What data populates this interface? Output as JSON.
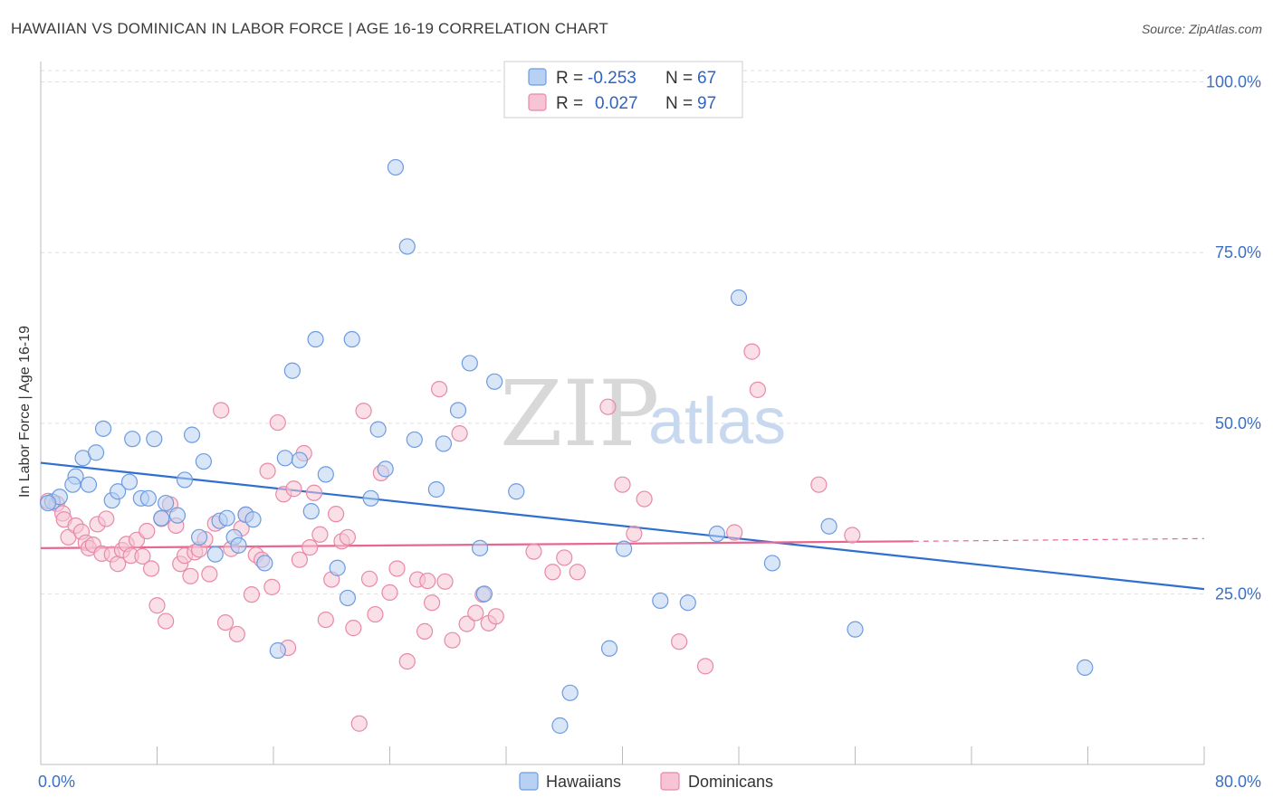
{
  "title": "HAWAIIAN VS DOMINICAN IN LABOR FORCE | AGE 16-19 CORRELATION CHART",
  "source": "Source: ZipAtlas.com",
  "watermark": {
    "zip": "ZIP",
    "atlas": "atlas"
  },
  "colors": {
    "hawaiian_fill": "#b8d1f3",
    "hawaiian_stroke": "#6d9be0",
    "hawaiian_line": "#2f6fd0",
    "dominican_fill": "#f6c4d4",
    "dominican_stroke": "#e889a8",
    "dominican_line": "#e6678f",
    "grid": "#dddddd",
    "tick_label": "#3b6fc4"
  },
  "stats": [
    {
      "r_label": "R =",
      "r_value": "-0.253",
      "n_label": "N =",
      "n_value": "67"
    },
    {
      "r_label": "R =",
      "r_value": "0.027",
      "n_label": "N =",
      "n_value": "97"
    }
  ],
  "chart_data": {
    "type": "scatter",
    "title": "HAWAIIAN VS DOMINICAN IN LABOR FORCE | AGE 16-19 CORRELATION CHART",
    "xlabel": "",
    "ylabel": "In Labor Force | Age 16-19",
    "xlim": [
      0,
      80
    ],
    "ylim": [
      0,
      103
    ],
    "x_tick_labels": [
      "0.0%",
      "80.0%"
    ],
    "y_ticks": [
      25,
      50,
      75,
      100
    ],
    "y_tick_labels": [
      "25.0%",
      "50.0%",
      "75.0%",
      "100.0%"
    ],
    "grid": true,
    "legend_position": "bottom-center",
    "series": [
      {
        "name": "Hawaiians",
        "trend": {
          "x": [
            0,
            80
          ],
          "y": [
            44.2,
            25.7
          ]
        },
        "points": [
          [
            0.8,
            38.5
          ],
          [
            1.3,
            39.2
          ],
          [
            2.4,
            42.2
          ],
          [
            2.2,
            41
          ],
          [
            3.3,
            41
          ],
          [
            2.9,
            44.9
          ],
          [
            3.8,
            45.7
          ],
          [
            4.3,
            49.2
          ],
          [
            4.9,
            38.7
          ],
          [
            5.3,
            40
          ],
          [
            6.1,
            41.4
          ],
          [
            6.3,
            47.7
          ],
          [
            6.9,
            39
          ],
          [
            7.4,
            39
          ],
          [
            7.8,
            47.7
          ],
          [
            8.3,
            36.1
          ],
          [
            8.6,
            38.3
          ],
          [
            9.4,
            36.5
          ],
          [
            9.9,
            41.7
          ],
          [
            10.4,
            48.3
          ],
          [
            10.9,
            33.3
          ],
          [
            11.2,
            44.4
          ],
          [
            12.0,
            30.8
          ],
          [
            12.3,
            35.7
          ],
          [
            12.8,
            36.1
          ],
          [
            13.3,
            33.3
          ],
          [
            13.6,
            32.1
          ],
          [
            14.1,
            36.6
          ],
          [
            14.6,
            35.9
          ],
          [
            15.4,
            29.5
          ],
          [
            16.3,
            16.7
          ],
          [
            16.8,
            44.9
          ],
          [
            17.3,
            57.7
          ],
          [
            17.8,
            44.6
          ],
          [
            18.6,
            37.1
          ],
          [
            18.9,
            62.3
          ],
          [
            19.6,
            42.5
          ],
          [
            20.4,
            28.8
          ],
          [
            21.4,
            62.3
          ],
          [
            21.1,
            24.4
          ],
          [
            22.7,
            39
          ],
          [
            23.2,
            49.1
          ],
          [
            23.7,
            43.3
          ],
          [
            24.4,
            87.5
          ],
          [
            25.2,
            75.9
          ],
          [
            25.7,
            47.6
          ],
          [
            27.2,
            40.3
          ],
          [
            27.7,
            47
          ],
          [
            28.7,
            51.9
          ],
          [
            29.5,
            58.8
          ],
          [
            30.2,
            31.7
          ],
          [
            30.5,
            25
          ],
          [
            31.2,
            56.1
          ],
          [
            32.7,
            40
          ],
          [
            35.7,
            5.7
          ],
          [
            36.4,
            10.5
          ],
          [
            39.1,
            17
          ],
          [
            40.1,
            31.6
          ],
          [
            42.6,
            24
          ],
          [
            44.5,
            23.7
          ],
          [
            46.5,
            33.8
          ],
          [
            48.0,
            68.4
          ],
          [
            50.3,
            29.5
          ],
          [
            54.2,
            34.9
          ],
          [
            56.0,
            19.8
          ],
          [
            71.8,
            14.2
          ],
          [
            0.5,
            38.3
          ]
        ]
      },
      {
        "name": "Dominicans",
        "trend": {
          "x": [
            0,
            60
          ],
          "y": [
            31.7,
            32.7
          ]
        },
        "trend_dashed": {
          "x": [
            60,
            80
          ],
          "y": [
            32.7,
            33.1
          ]
        },
        "points": [
          [
            0.5,
            38.6
          ],
          [
            1.1,
            38.2
          ],
          [
            1.5,
            36.8
          ],
          [
            1.6,
            35.9
          ],
          [
            1.9,
            33.3
          ],
          [
            2.4,
            35
          ],
          [
            2.8,
            34.1
          ],
          [
            3.1,
            32.5
          ],
          [
            3.3,
            31.7
          ],
          [
            3.6,
            32.2
          ],
          [
            3.9,
            35.2
          ],
          [
            4.2,
            30.9
          ],
          [
            4.5,
            36
          ],
          [
            4.9,
            30.8
          ],
          [
            5.3,
            29.4
          ],
          [
            5.6,
            31.4
          ],
          [
            5.9,
            32.3
          ],
          [
            6.2,
            30.6
          ],
          [
            6.6,
            32.9
          ],
          [
            7.0,
            30.5
          ],
          [
            7.3,
            34.2
          ],
          [
            7.6,
            28.7
          ],
          [
            8.0,
            23.3
          ],
          [
            8.3,
            36
          ],
          [
            8.6,
            21
          ],
          [
            8.9,
            38.1
          ],
          [
            9.3,
            35
          ],
          [
            9.6,
            29.4
          ],
          [
            9.9,
            30.6
          ],
          [
            10.3,
            27.6
          ],
          [
            10.6,
            31.1
          ],
          [
            10.9,
            31.5
          ],
          [
            11.3,
            33
          ],
          [
            11.6,
            27.9
          ],
          [
            12.0,
            35.3
          ],
          [
            12.4,
            51.9
          ],
          [
            12.7,
            20.8
          ],
          [
            13.1,
            31.6
          ],
          [
            13.5,
            19.1
          ],
          [
            13.8,
            34.6
          ],
          [
            14.1,
            36.6
          ],
          [
            14.5,
            24.9
          ],
          [
            14.8,
            30.7
          ],
          [
            15.2,
            30
          ],
          [
            15.6,
            43
          ],
          [
            15.9,
            26
          ],
          [
            16.3,
            50.1
          ],
          [
            16.7,
            39.6
          ],
          [
            17.0,
            17.1
          ],
          [
            17.4,
            40.4
          ],
          [
            17.8,
            30
          ],
          [
            18.1,
            45.6
          ],
          [
            18.5,
            31.8
          ],
          [
            18.8,
            39.8
          ],
          [
            19.2,
            33.7
          ],
          [
            19.6,
            21.2
          ],
          [
            20.0,
            27.1
          ],
          [
            20.3,
            36.7
          ],
          [
            20.7,
            32.7
          ],
          [
            21.1,
            33.3
          ],
          [
            21.5,
            20
          ],
          [
            21.9,
            6
          ],
          [
            22.2,
            51.8
          ],
          [
            22.6,
            27.2
          ],
          [
            23.0,
            22
          ],
          [
            23.4,
            42.7
          ],
          [
            24.0,
            25.2
          ],
          [
            24.5,
            28.7
          ],
          [
            25.2,
            15.1
          ],
          [
            25.9,
            27.1
          ],
          [
            26.4,
            19.5
          ],
          [
            26.9,
            23.7
          ],
          [
            27.4,
            55
          ],
          [
            27.8,
            26.8
          ],
          [
            28.3,
            18.2
          ],
          [
            28.8,
            48.5
          ],
          [
            29.3,
            20.6
          ],
          [
            29.9,
            22.2
          ],
          [
            30.4,
            24.9
          ],
          [
            30.8,
            20.7
          ],
          [
            31.3,
            21.7
          ],
          [
            33.9,
            31.2
          ],
          [
            35.2,
            28.2
          ],
          [
            36.0,
            30.3
          ],
          [
            36.9,
            28.2
          ],
          [
            39.0,
            52.4
          ],
          [
            40.0,
            41
          ],
          [
            40.8,
            33.8
          ],
          [
            41.5,
            38.9
          ],
          [
            43.9,
            18
          ],
          [
            45.7,
            14.4
          ],
          [
            47.7,
            34
          ],
          [
            48.9,
            60.5
          ],
          [
            49.3,
            54.9
          ],
          [
            53.5,
            41
          ],
          [
            55.8,
            33.6
          ],
          [
            26.6,
            26.9
          ]
        ]
      }
    ]
  }
}
